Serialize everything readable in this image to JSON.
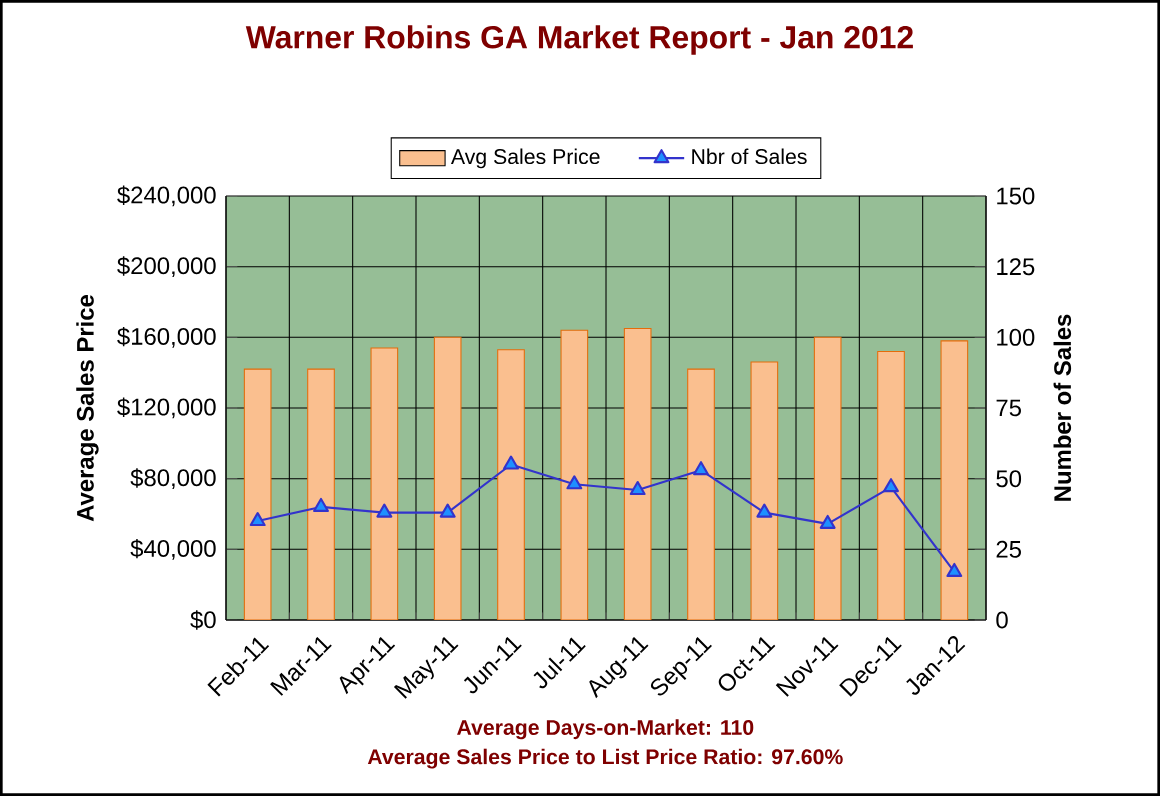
{
  "chart_data": {
    "type": "bar",
    "title": "Warner Robins GA Market Report - Jan 2012",
    "categories": [
      "Feb-11",
      "Mar-11",
      "Apr-11",
      "May-11",
      "Jun-11",
      "Jul-11",
      "Aug-11",
      "Sep-11",
      "Oct-11",
      "Nov-11",
      "Dec-11",
      "Jan-12"
    ],
    "series": [
      {
        "name": "Avg Sales Price",
        "color": "#fabf8f",
        "values": [
          142000,
          142000,
          154000,
          160000,
          153000,
          164000,
          165000,
          142000,
          146000,
          160000,
          152000,
          158000
        ]
      },
      {
        "name": "Nbr of Sales",
        "type": "line",
        "axis": "y2",
        "color": "#3333cc",
        "marker": "triangle",
        "values": [
          35,
          40,
          38,
          38,
          55,
          48,
          46,
          53,
          38,
          34,
          47,
          17
        ]
      }
    ],
    "ylabel": "Average Sales Price",
    "y2label": "Number of Sales",
    "ylim": [
      0,
      240000
    ],
    "yticks": [
      {
        "value": 0,
        "label": "$0"
      },
      {
        "value": 40000,
        "label": "$40,000"
      },
      {
        "value": 80000,
        "label": "$80,000"
      },
      {
        "value": 120000,
        "label": "$120,000"
      },
      {
        "value": 160000,
        "label": "$160,000"
      },
      {
        "value": 200000,
        "label": "$200,000"
      },
      {
        "value": 240000,
        "label": "$240,000"
      }
    ],
    "y2lim": [
      0,
      150
    ],
    "y2ticks": [
      0,
      25,
      50,
      75,
      100,
      125,
      150
    ],
    "grid": true,
    "legend": "top",
    "annotations": [
      "Average Days-on-Market: 110",
      "Average Sales Price to List Price Ratio: 97.60%"
    ]
  }
}
